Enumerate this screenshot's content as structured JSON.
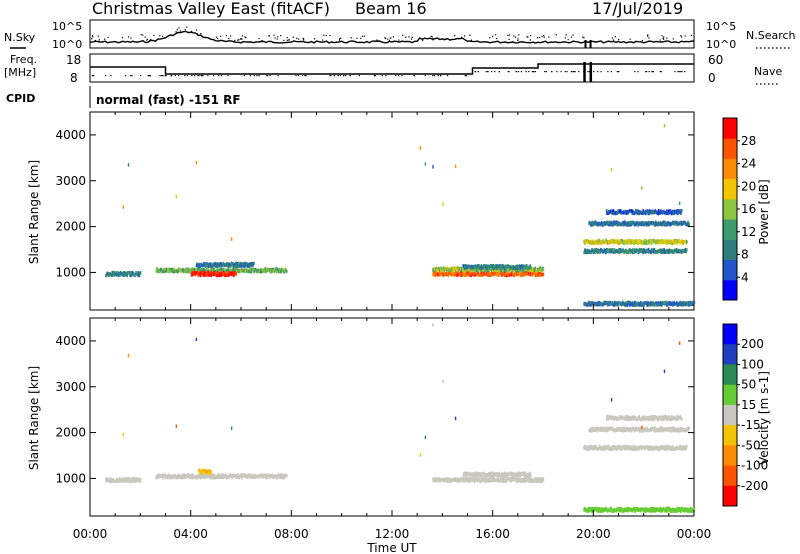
{
  "header": {
    "title": "Christmas Valley East (fitACF)",
    "beam": "Beam 16",
    "date": "17/Jul/2019"
  },
  "panels": {
    "nsky_label": "N.Sky",
    "nsearch_label": "N.Search",
    "freq_label": "Freq.",
    "freq_unit": "[MHz]",
    "nave_label": "Nave",
    "cpid_label": "CPID",
    "cpid_text": "normal (fast) -151 RF"
  },
  "noise_axis": {
    "left_ticks": [
      "10^5",
      "10^0"
    ],
    "right_ticks": [
      "10^5",
      "10^0"
    ]
  },
  "freq_axis": {
    "left_ticks": [
      "18",
      "8"
    ],
    "right_ticks": [
      "60",
      "0"
    ]
  },
  "colors": {
    "power_scale": [
      "#0000ff",
      "#2255cc",
      "#2e7d7d",
      "#3d9a6d",
      "#8cc63f",
      "#f5c400",
      "#ff8c00",
      "#ff5500",
      "#ff0000"
    ],
    "velocity_scale": [
      "#0000ff",
      "#1f3fbf",
      "#2c8a55",
      "#66cc33",
      "#c8c8c0",
      "#f5c400",
      "#ff8c00",
      "#ff5500",
      "#ff0000"
    ]
  },
  "chart_data": [
    {
      "type": "heatmap",
      "name": "power",
      "xlabel": "",
      "ylabel": "Slant Range [km]",
      "xlim": [
        0,
        24
      ],
      "ylim": [
        180,
        4500
      ],
      "yticks": [
        1000,
        2000,
        3000,
        4000
      ],
      "colorbar": {
        "label": "Power [dB]",
        "ticks": [
          4,
          8,
          12,
          16,
          20,
          24,
          28
        ],
        "range": [
          0,
          32
        ]
      },
      "echo_bands": [
        {
          "t_start": 0.6,
          "t_end": 2.0,
          "range_km": 1000,
          "value": 10
        },
        {
          "t_start": 2.6,
          "t_end": 7.8,
          "range_km": 1080,
          "value": 14
        },
        {
          "t_start": 4.0,
          "t_end": 5.8,
          "range_km": 1000,
          "value": 30
        },
        {
          "t_start": 4.2,
          "t_end": 6.5,
          "range_km": 1200,
          "value": 8
        },
        {
          "t_start": 13.6,
          "t_end": 18.0,
          "range_km": 1000,
          "value": 26
        },
        {
          "t_start": 13.6,
          "t_end": 18.0,
          "range_km": 1100,
          "value": 16
        },
        {
          "t_start": 14.8,
          "t_end": 17.5,
          "range_km": 1150,
          "value": 10
        },
        {
          "t_start": 19.6,
          "t_end": 23.7,
          "range_km": 1700,
          "value": 18
        },
        {
          "t_start": 19.8,
          "t_end": 23.8,
          "range_km": 2100,
          "value": 8
        },
        {
          "t_start": 20.5,
          "t_end": 23.5,
          "range_km": 2350,
          "value": 6
        },
        {
          "t_start": 19.6,
          "t_end": 23.7,
          "range_km": 1500,
          "value": 10
        },
        {
          "t_start": 19.6,
          "t_end": 24.0,
          "range_km": 350,
          "value": 8
        }
      ],
      "scatter_times": [
        1.3,
        1.5,
        3.4,
        4.2,
        5.6,
        13.1,
        13.3,
        13.6,
        14.0,
        14.5,
        20.7,
        21.9,
        22.8,
        23.4
      ]
    },
    {
      "type": "heatmap",
      "name": "velocity",
      "xlabel": "Time UT",
      "ylabel": "Slant Range [km]",
      "xlim": [
        0,
        24
      ],
      "ylim": [
        180,
        4500
      ],
      "yticks": [
        1000,
        2000,
        3000,
        4000
      ],
      "xticks": [
        "00:00",
        "04:00",
        "08:00",
        "12:00",
        "16:00",
        "20:00",
        "00:00"
      ],
      "colorbar": {
        "label": "Velocity [m s-1]",
        "ticks": [
          "200",
          "100",
          "50",
          "15",
          "-15",
          "-50",
          "-100",
          "-200"
        ]
      },
      "echo_bands": [
        {
          "t_start": 0.6,
          "t_end": 2.0,
          "range_km": 1000,
          "value": 0
        },
        {
          "t_start": 2.6,
          "t_end": 7.8,
          "range_km": 1080,
          "value": 0
        },
        {
          "t_start": 4.3,
          "t_end": 4.8,
          "range_km": 1180,
          "value": -45
        },
        {
          "t_start": 13.6,
          "t_end": 18.0,
          "range_km": 1000,
          "value": 0
        },
        {
          "t_start": 14.8,
          "t_end": 17.5,
          "range_km": 1120,
          "value": 0
        },
        {
          "t_start": 19.6,
          "t_end": 23.7,
          "range_km": 1700,
          "value": 0
        },
        {
          "t_start": 19.8,
          "t_end": 23.8,
          "range_km": 2100,
          "value": 0
        },
        {
          "t_start": 20.5,
          "t_end": 23.5,
          "range_km": 2350,
          "value": 0
        },
        {
          "t_start": 19.6,
          "t_end": 24.0,
          "range_km": 350,
          "value": 40
        }
      ],
      "scatter_times": [
        1.3,
        1.5,
        3.4,
        4.2,
        5.6,
        13.1,
        13.3,
        13.6,
        14.0,
        14.5,
        20.7,
        21.9,
        22.8,
        23.4
      ]
    }
  ]
}
